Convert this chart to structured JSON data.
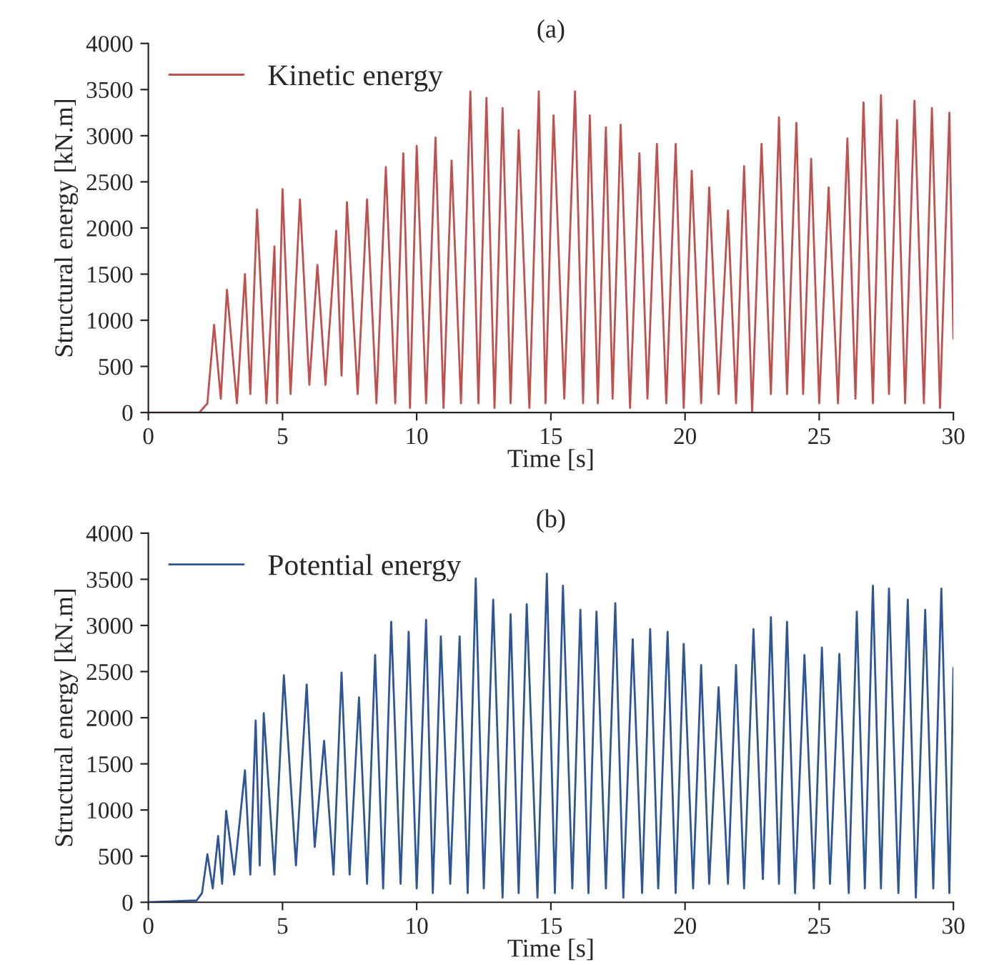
{
  "chart_data": [
    {
      "type": "line",
      "title": "(a)",
      "xlabel": "Time [s]",
      "ylabel": "Structural energy [kN.m]",
      "xlim": [
        0,
        30
      ],
      "ylim": [
        0,
        4000
      ],
      "xticks": [
        0,
        5,
        10,
        15,
        20,
        25,
        30
      ],
      "yticks": [
        0,
        500,
        1000,
        1500,
        2000,
        2500,
        3000,
        3500,
        4000
      ],
      "grid": false,
      "legend": "top left",
      "marker": "none",
      "line_style": "solid",
      "series": [
        {
          "name": "Kinetic energy",
          "color": "#c0504d",
          "x": [
            0,
            1.9,
            2.2,
            2.45,
            2.7,
            2.93,
            3.3,
            3.6,
            3.8,
            4.05,
            4.4,
            4.7,
            4.8,
            5.0,
            5.3,
            5.65,
            6.0,
            6.3,
            6.6,
            7.0,
            7.2,
            7.4,
            7.8,
            8.15,
            8.5,
            8.85,
            9.2,
            9.5,
            9.75,
            10.0,
            10.35,
            10.7,
            11.0,
            11.3,
            11.65,
            12.0,
            12.3,
            12.6,
            12.9,
            13.2,
            13.5,
            13.8,
            14.2,
            14.55,
            14.8,
            15.1,
            15.5,
            15.9,
            16.2,
            16.45,
            16.75,
            17.05,
            17.3,
            17.6,
            17.95,
            18.3,
            18.6,
            18.95,
            19.3,
            19.65,
            19.95,
            20.25,
            20.6,
            20.9,
            21.25,
            21.6,
            21.9,
            22.2,
            22.5,
            22.85,
            23.2,
            23.5,
            23.8,
            24.15,
            24.4,
            24.7,
            25.0,
            25.35,
            25.7,
            26.05,
            26.35,
            26.65,
            27.0,
            27.3,
            27.6,
            27.9,
            28.2,
            28.55,
            28.9,
            29.2,
            29.5,
            29.85,
            30.0
          ],
          "values": [
            0,
            0,
            100,
            950,
            150,
            1330,
            100,
            1500,
            200,
            2200,
            100,
            1800,
            100,
            2420,
            200,
            2310,
            300,
            1600,
            300,
            1970,
            400,
            2280,
            200,
            2310,
            100,
            2660,
            100,
            2810,
            50,
            2890,
            100,
            2980,
            50,
            2730,
            100,
            3480,
            100,
            3410,
            50,
            3300,
            100,
            3060,
            50,
            3480,
            100,
            3220,
            150,
            3480,
            100,
            3220,
            100,
            3090,
            150,
            3120,
            50,
            2810,
            150,
            2910,
            100,
            2910,
            50,
            2620,
            100,
            2440,
            200,
            2190,
            100,
            2670,
            0,
            2910,
            200,
            3200,
            200,
            3140,
            200,
            2750,
            100,
            2440,
            100,
            2970,
            150,
            3360,
            100,
            3440,
            200,
            3170,
            100,
            3380,
            100,
            3300,
            50,
            3250,
            800
          ]
        }
      ]
    },
    {
      "type": "line",
      "title": "(b)",
      "xlabel": "Time [s]",
      "ylabel": "Structural energy [kN.m]",
      "xlim": [
        0,
        30
      ],
      "ylim": [
        0,
        4000
      ],
      "xticks": [
        0,
        5,
        10,
        15,
        20,
        25,
        30
      ],
      "yticks": [
        0,
        500,
        1000,
        1500,
        2000,
        2500,
        3000,
        3500,
        4000
      ],
      "grid": false,
      "legend": "top left",
      "marker": "none",
      "line_style": "solid",
      "series": [
        {
          "name": "Potential energy",
          "color": "#2e5597",
          "x": [
            0,
            1.8,
            2.0,
            2.2,
            2.4,
            2.6,
            2.75,
            2.9,
            3.2,
            3.6,
            3.8,
            4.0,
            4.15,
            4.3,
            4.7,
            5.05,
            5.5,
            5.9,
            6.2,
            6.55,
            6.9,
            7.2,
            7.5,
            7.85,
            8.15,
            8.45,
            8.75,
            9.05,
            9.4,
            9.7,
            10.0,
            10.35,
            10.6,
            10.9,
            11.25,
            11.6,
            11.9,
            12.2,
            12.5,
            12.85,
            13.2,
            13.5,
            13.8,
            14.1,
            14.5,
            14.85,
            15.15,
            15.45,
            15.8,
            16.1,
            16.4,
            16.7,
            17.05,
            17.4,
            17.7,
            18.05,
            18.4,
            18.7,
            19.0,
            19.35,
            19.65,
            19.95,
            20.3,
            20.6,
            20.9,
            21.25,
            21.6,
            21.9,
            22.2,
            22.55,
            22.9,
            23.2,
            23.5,
            23.8,
            24.1,
            24.45,
            24.8,
            25.1,
            25.4,
            25.75,
            26.1,
            26.4,
            26.7,
            27.0,
            27.3,
            27.6,
            27.95,
            28.3,
            28.6,
            28.95,
            29.25,
            29.55,
            29.85,
            30.0
          ],
          "values": [
            0,
            20,
            100,
            520,
            150,
            720,
            200,
            990,
            300,
            1430,
            300,
            1970,
            400,
            2050,
            300,
            2460,
            400,
            2360,
            600,
            1750,
            300,
            2490,
            300,
            2220,
            200,
            2680,
            150,
            3040,
            200,
            2930,
            150,
            3060,
            100,
            2880,
            200,
            2880,
            100,
            3510,
            150,
            3280,
            50,
            3120,
            100,
            3230,
            50,
            3560,
            100,
            3430,
            150,
            3170,
            100,
            3150,
            150,
            3240,
            50,
            2850,
            100,
            2960,
            150,
            2930,
            100,
            2800,
            150,
            2570,
            200,
            2330,
            200,
            2570,
            150,
            2960,
            250,
            3090,
            200,
            3040,
            100,
            2680,
            150,
            2760,
            200,
            2690,
            100,
            3150,
            150,
            3430,
            150,
            3400,
            100,
            3280,
            50,
            3170,
            150,
            3400,
            100,
            2540
          ]
        }
      ]
    }
  ]
}
